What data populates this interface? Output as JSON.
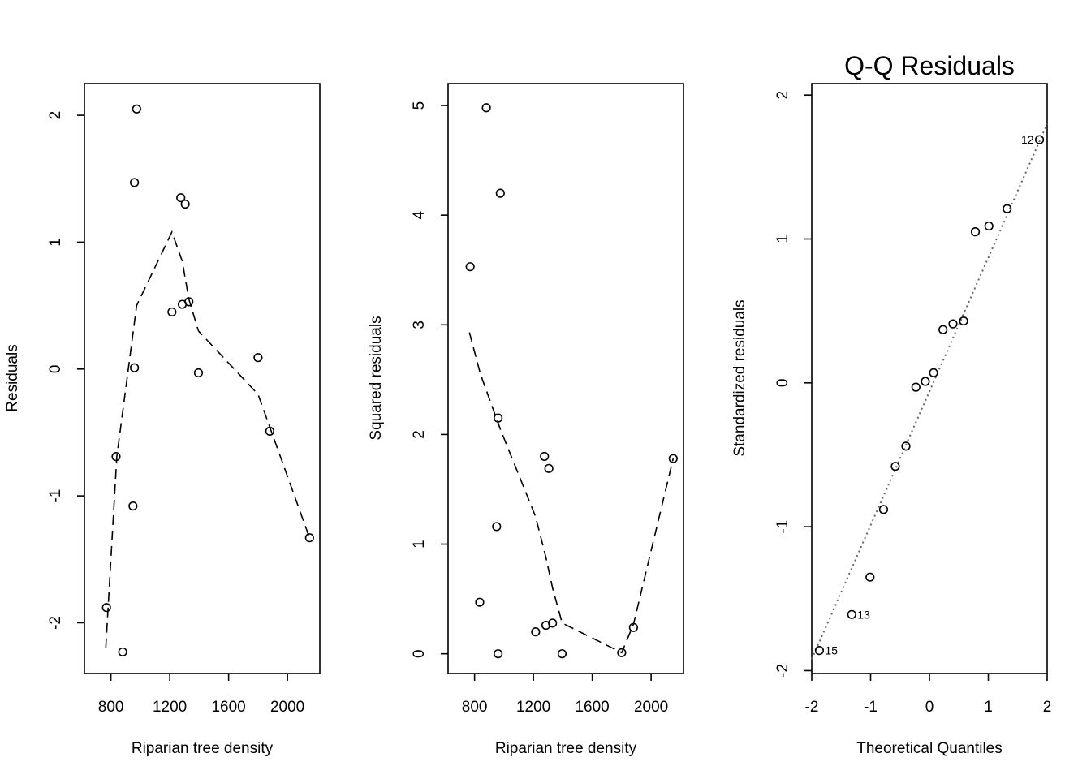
{
  "chart_data": [
    {
      "type": "scatter",
      "title": "",
      "xlabel": "Riparian tree density",
      "ylabel": "Residuals",
      "xlim": [
        620,
        2220
      ],
      "ylim": [
        -2.4,
        2.25
      ],
      "xticks": [
        800,
        1200,
        1600,
        2000
      ],
      "yticks": [
        -2,
        -1,
        0,
        1,
        2
      ],
      "x": [
        770,
        835,
        880,
        950,
        960,
        960,
        975,
        1215,
        1275,
        1285,
        1305,
        1330,
        1395,
        1800,
        1880,
        2150
      ],
      "y": [
        -1.88,
        -0.69,
        -2.23,
        -1.08,
        1.47,
        0.01,
        2.05,
        0.45,
        1.35,
        0.51,
        1.3,
        0.53,
        -0.03,
        0.09,
        -0.49,
        -1.33
      ],
      "smooth": {
        "x": [
          765,
          840,
          975,
          1215,
          1285,
          1330,
          1395,
          1800,
          2150
        ],
        "y": [
          -2.2,
          -0.69,
          0.5,
          1.08,
          0.85,
          0.55,
          0.3,
          -0.2,
          -1.33
        ]
      }
    },
    {
      "type": "scatter",
      "title": "",
      "xlabel": "Riparian tree density",
      "ylabel": "Squared residuals",
      "xlim": [
        620,
        2220
      ],
      "ylim": [
        -0.18,
        5.2
      ],
      "xticks": [
        800,
        1200,
        1600,
        2000
      ],
      "yticks": [
        0,
        1,
        2,
        3,
        4,
        5
      ],
      "x": [
        770,
        835,
        880,
        950,
        960,
        960,
        975,
        1215,
        1275,
        1285,
        1305,
        1330,
        1395,
        1800,
        1880,
        2150
      ],
      "y": [
        3.53,
        0.47,
        4.98,
        1.16,
        2.15,
        0.0,
        4.2,
        0.2,
        1.8,
        0.26,
        1.69,
        0.28,
        0.0,
        0.01,
        0.24,
        1.78
      ],
      "smooth": {
        "x": [
          765,
          840,
          975,
          1215,
          1285,
          1330,
          1395,
          1800,
          1880,
          2150
        ],
        "y": [
          2.93,
          2.55,
          2.05,
          1.25,
          0.88,
          0.6,
          0.28,
          0.01,
          0.27,
          1.78
        ]
      }
    },
    {
      "type": "scatter",
      "title": "Q-Q Residuals",
      "xlabel": "Theoretical Quantiles",
      "ylabel": "Standardized residuals",
      "xlim": [
        -2.0,
        2.0
      ],
      "ylim": [
        -2.02,
        2.08
      ],
      "xticks": [
        -2,
        -1,
        0,
        1,
        2
      ],
      "yticks": [
        -2,
        -1,
        0,
        1,
        2
      ],
      "x": [
        -1.87,
        -1.32,
        -1.01,
        -0.78,
        -0.58,
        -0.4,
        -0.23,
        -0.07,
        0.07,
        0.23,
        0.4,
        0.58,
        0.78,
        1.01,
        1.32,
        1.87
      ],
      "y": [
        -1.86,
        -1.61,
        -1.35,
        -0.88,
        -0.58,
        -0.44,
        -0.03,
        0.01,
        0.07,
        0.37,
        0.41,
        0.43,
        1.05,
        1.09,
        1.21,
        1.69
      ],
      "point_labels": [
        {
          "index": 0,
          "text": "15"
        },
        {
          "index": 1,
          "text": "13"
        },
        {
          "index": 15,
          "text": "12"
        }
      ],
      "reference_line": {
        "x": [
          -2.0,
          2.0
        ],
        "y": [
          -1.92,
          1.8
        ]
      }
    }
  ]
}
